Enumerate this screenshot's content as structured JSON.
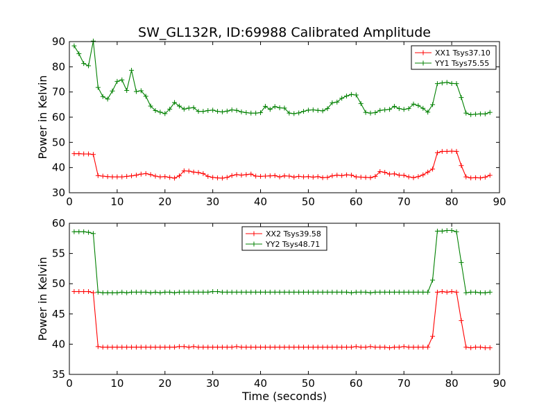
{
  "figure": {
    "title": "SW_GL132R, ID:69988 Calibrated Amplitude"
  },
  "chart_data": [
    {
      "type": "line",
      "title": "SW_GL132R, ID:69988 Calibrated Amplitude",
      "xlabel": "",
      "ylabel": "Power in Kelvin",
      "xlim": [
        0,
        90
      ],
      "ylim": [
        30,
        90
      ],
      "xticks": [
        0,
        10,
        20,
        30,
        40,
        50,
        60,
        70,
        80,
        90
      ],
      "yticks": [
        30,
        40,
        50,
        60,
        70,
        80,
        90
      ],
      "grid": false,
      "legend_position": "top-right",
      "marker": "+",
      "x": [
        1,
        2,
        3,
        4,
        5,
        6,
        7,
        8,
        9,
        10,
        11,
        12,
        13,
        14,
        15,
        16,
        17,
        18,
        19,
        20,
        21,
        22,
        23,
        24,
        25,
        26,
        27,
        28,
        29,
        30,
        31,
        32,
        33,
        34,
        35,
        36,
        37,
        38,
        39,
        40,
        41,
        42,
        43,
        44,
        45,
        46,
        47,
        48,
        49,
        50,
        51,
        52,
        53,
        54,
        55,
        56,
        57,
        58,
        59,
        60,
        61,
        62,
        63,
        64,
        65,
        66,
        67,
        68,
        69,
        70,
        71,
        72,
        73,
        74,
        75,
        76,
        77,
        78,
        79,
        80,
        81,
        82,
        83,
        84,
        85,
        86,
        87,
        88
      ],
      "series": [
        {
          "name": "XX1 Tsys37.10",
          "color": "#ff0000",
          "values": [
            45.5,
            45.5,
            45.4,
            45.4,
            45.2,
            36.8,
            36.6,
            36.4,
            36.3,
            36.3,
            36.3,
            36.5,
            36.7,
            37.0,
            37.4,
            37.6,
            37.2,
            36.6,
            36.3,
            36.4,
            36.1,
            35.8,
            36.7,
            38.7,
            38.6,
            38.2,
            38.0,
            37.6,
            36.5,
            36.1,
            35.9,
            35.8,
            36.1,
            36.8,
            37.2,
            37.0,
            37.2,
            37.4,
            36.6,
            36.5,
            36.6,
            36.7,
            36.8,
            36.3,
            36.7,
            36.6,
            36.2,
            36.5,
            36.3,
            36.4,
            36.2,
            36.4,
            36.0,
            36.1,
            36.7,
            37.0,
            36.8,
            37.1,
            37.0,
            36.3,
            36.2,
            36.1,
            36.0,
            36.5,
            38.4,
            38.1,
            37.4,
            37.5,
            37.0,
            36.9,
            36.3,
            36.0,
            36.4,
            37.1,
            38.2,
            39.4,
            45.9,
            46.4,
            46.4,
            46.5,
            46.4,
            40.8,
            36.3,
            35.9,
            36.0,
            35.9,
            36.2,
            36.9
          ]
        },
        {
          "name": "YY1 Tsys75.55",
          "color": "#008000",
          "values": [
            88.3,
            85.2,
            81.3,
            80.4,
            90.2,
            71.8,
            68.2,
            67.2,
            70.4,
            74.2,
            74.8,
            70.6,
            78.6,
            70.2,
            70.5,
            68.3,
            64.4,
            62.6,
            62.0,
            61.4,
            63.2,
            65.8,
            64.4,
            63.2,
            63.6,
            63.8,
            62.3,
            62.3,
            62.6,
            62.8,
            62.3,
            62.1,
            62.4,
            62.9,
            62.7,
            62.1,
            61.8,
            61.6,
            61.6,
            61.8,
            64.3,
            63.1,
            64.2,
            63.7,
            63.6,
            61.6,
            61.4,
            61.7,
            62.3,
            62.8,
            62.9,
            62.7,
            62.5,
            63.4,
            65.7,
            66.0,
            67.5,
            68.4,
            69.0,
            68.8,
            65.4,
            61.9,
            61.6,
            61.8,
            62.7,
            62.9,
            63.1,
            64.3,
            63.4,
            63.1,
            63.4,
            65.2,
            64.6,
            63.5,
            62.0,
            65.0,
            73.3,
            73.6,
            73.8,
            73.4,
            73.3,
            67.8,
            61.6,
            61.0,
            61.2,
            61.3,
            61.3,
            61.9
          ]
        }
      ]
    },
    {
      "type": "line",
      "title": "",
      "xlabel": "Time (seconds)",
      "ylabel": "Power in Kelvin",
      "xlim": [
        0,
        90
      ],
      "ylim": [
        35,
        60
      ],
      "xticks": [
        0,
        10,
        20,
        30,
        40,
        50,
        60,
        70,
        80,
        90
      ],
      "yticks": [
        35,
        40,
        45,
        50,
        55,
        60
      ],
      "grid": false,
      "legend_position": "top-center",
      "marker": "+",
      "x": [
        1,
        2,
        3,
        4,
        5,
        6,
        7,
        8,
        9,
        10,
        11,
        12,
        13,
        14,
        15,
        16,
        17,
        18,
        19,
        20,
        21,
        22,
        23,
        24,
        25,
        26,
        27,
        28,
        29,
        30,
        31,
        32,
        33,
        34,
        35,
        36,
        37,
        38,
        39,
        40,
        41,
        42,
        43,
        44,
        45,
        46,
        47,
        48,
        49,
        50,
        51,
        52,
        53,
        54,
        55,
        56,
        57,
        58,
        59,
        60,
        61,
        62,
        63,
        64,
        65,
        66,
        67,
        68,
        69,
        70,
        71,
        72,
        73,
        74,
        75,
        76,
        77,
        78,
        79,
        80,
        81,
        82,
        83,
        84,
        85,
        86,
        87,
        88
      ],
      "series": [
        {
          "name": "XX2 Tsys39.58",
          "color": "#ff0000",
          "values": [
            48.7,
            48.7,
            48.7,
            48.7,
            48.5,
            39.6,
            39.5,
            39.5,
            39.5,
            39.5,
            39.5,
            39.5,
            39.5,
            39.5,
            39.5,
            39.5,
            39.5,
            39.5,
            39.5,
            39.5,
            39.5,
            39.5,
            39.6,
            39.6,
            39.5,
            39.6,
            39.5,
            39.5,
            39.5,
            39.5,
            39.5,
            39.5,
            39.5,
            39.5,
            39.6,
            39.5,
            39.5,
            39.5,
            39.5,
            39.5,
            39.5,
            39.5,
            39.5,
            39.5,
            39.5,
            39.5,
            39.5,
            39.5,
            39.5,
            39.5,
            39.5,
            39.5,
            39.5,
            39.5,
            39.5,
            39.5,
            39.5,
            39.5,
            39.5,
            39.6,
            39.5,
            39.5,
            39.6,
            39.5,
            39.5,
            39.5,
            39.4,
            39.5,
            39.5,
            39.6,
            39.5,
            39.5,
            39.5,
            39.5,
            39.5,
            41.3,
            48.6,
            48.7,
            48.6,
            48.7,
            48.6,
            43.9,
            39.5,
            39.4,
            39.5,
            39.5,
            39.4,
            39.4
          ]
        },
        {
          "name": "YY2 Tsys48.71",
          "color": "#008000",
          "values": [
            58.6,
            58.6,
            58.6,
            58.5,
            58.3,
            48.6,
            48.5,
            48.5,
            48.5,
            48.5,
            48.6,
            48.5,
            48.6,
            48.6,
            48.6,
            48.6,
            48.5,
            48.6,
            48.5,
            48.6,
            48.6,
            48.5,
            48.6,
            48.6,
            48.6,
            48.6,
            48.6,
            48.6,
            48.6,
            48.7,
            48.7,
            48.6,
            48.6,
            48.6,
            48.6,
            48.6,
            48.6,
            48.6,
            48.6,
            48.6,
            48.6,
            48.6,
            48.6,
            48.6,
            48.6,
            48.6,
            48.6,
            48.6,
            48.6,
            48.6,
            48.6,
            48.6,
            48.6,
            48.6,
            48.6,
            48.6,
            48.6,
            48.6,
            48.5,
            48.6,
            48.6,
            48.6,
            48.5,
            48.6,
            48.6,
            48.6,
            48.6,
            48.6,
            48.6,
            48.6,
            48.6,
            48.6,
            48.6,
            48.6,
            48.6,
            50.6,
            58.7,
            58.7,
            58.8,
            58.8,
            58.6,
            53.5,
            48.5,
            48.6,
            48.6,
            48.5,
            48.5,
            48.6
          ]
        }
      ]
    }
  ]
}
